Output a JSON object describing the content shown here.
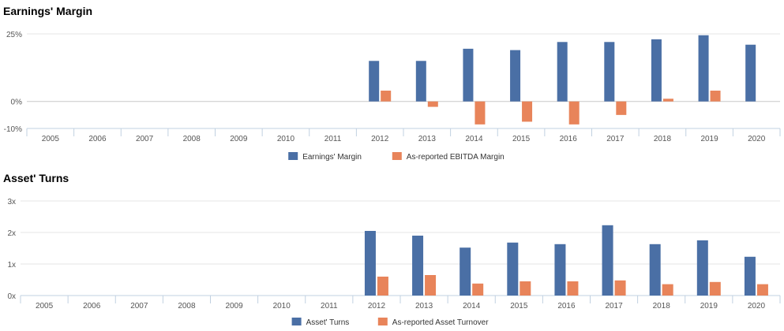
{
  "chart_data": [
    {
      "type": "bar",
      "title": "Earnings' Margin",
      "categories": [
        "2005",
        "2006",
        "2007",
        "2008",
        "2009",
        "2010",
        "2011",
        "2012",
        "2013",
        "2014",
        "2015",
        "2016",
        "2017",
        "2018",
        "2019",
        "2020"
      ],
      "series": [
        {
          "name": "Earnings' Margin",
          "color": "#4a6fa5",
          "values": [
            null,
            null,
            null,
            null,
            null,
            null,
            null,
            15,
            15,
            19.5,
            19,
            22,
            22,
            23,
            24.5,
            21
          ]
        },
        {
          "name": "As-reported EBITDA Margin",
          "color": "#e8845a",
          "values": [
            null,
            null,
            null,
            null,
            null,
            null,
            null,
            4,
            -2,
            -8.5,
            -7.5,
            -8.5,
            -5,
            1,
            4,
            null
          ]
        }
      ],
      "ylim": [
        -10,
        25
      ],
      "yticks": [
        -10,
        0,
        25
      ],
      "ytick_labels": [
        "-10%",
        "0%",
        "25%"
      ],
      "grid": true,
      "legend": "bottom"
    },
    {
      "type": "bar",
      "title": "Asset' Turns",
      "categories": [
        "2005",
        "2006",
        "2007",
        "2008",
        "2009",
        "2010",
        "2011",
        "2012",
        "2013",
        "2014",
        "2015",
        "2016",
        "2017",
        "2018",
        "2019",
        "2020"
      ],
      "series": [
        {
          "name": "Asset' Turns",
          "color": "#4a6fa5",
          "values": [
            null,
            null,
            null,
            null,
            null,
            null,
            null,
            2.05,
            1.9,
            1.52,
            1.68,
            1.63,
            2.23,
            1.63,
            1.75,
            1.23
          ]
        },
        {
          "name": "As-reported Asset Turnover",
          "color": "#e8845a",
          "values": [
            null,
            null,
            null,
            null,
            null,
            null,
            null,
            0.6,
            0.65,
            0.38,
            0.45,
            0.45,
            0.48,
            0.36,
            0.43,
            0.36
          ]
        }
      ],
      "ylim": [
        0,
        3
      ],
      "yticks": [
        0,
        1,
        2,
        3
      ],
      "ytick_labels": [
        "0x",
        "1x",
        "2x",
        "3x"
      ],
      "grid": true,
      "legend": "bottom"
    }
  ]
}
